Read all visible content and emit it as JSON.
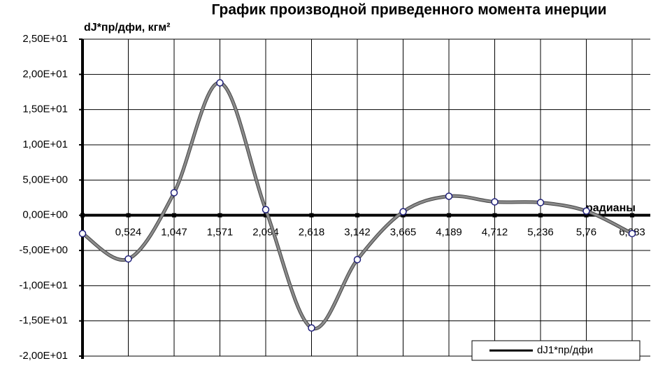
{
  "chart_data": {
    "type": "line",
    "title": "График производной приведенного момента инерции",
    "y_label": "dJ*пр/дфи, кгм²",
    "x_label": "радианы",
    "categories": [
      null,
      "0,524",
      "1,047",
      "1,571",
      "2,094",
      "2,618",
      "3,142",
      "3,665",
      "4,189",
      "4,712",
      "5,236",
      "5,76",
      "6,283"
    ],
    "series": [
      {
        "name": "dJ1*пр/дфи",
        "color": "#8c8c8c",
        "marker_color": "#1f1f7a",
        "values": [
          -2.6,
          -6.2,
          3.2,
          18.8,
          0.8,
          -16.0,
          -6.3,
          0.5,
          2.7,
          1.9,
          1.8,
          0.6,
          -2.6
        ]
      }
    ],
    "ylim": [
      -20,
      25
    ],
    "yticks": [
      {
        "value": -20,
        "label": "-2,00E+01"
      },
      {
        "value": -15,
        "label": "-1,50E+01"
      },
      {
        "value": -10,
        "label": "-1,00E+01"
      },
      {
        "value": -5,
        "label": "-5,00E+00"
      },
      {
        "value": 0,
        "label": "0,00E+00"
      },
      {
        "value": 5,
        "label": "5,00E+00"
      },
      {
        "value": 10,
        "label": "1,00E+01"
      },
      {
        "value": 15,
        "label": "1,50E+01"
      },
      {
        "value": 20,
        "label": "2,00E+01"
      },
      {
        "value": 25,
        "label": "2,50E+01"
      }
    ],
    "grid": true
  }
}
